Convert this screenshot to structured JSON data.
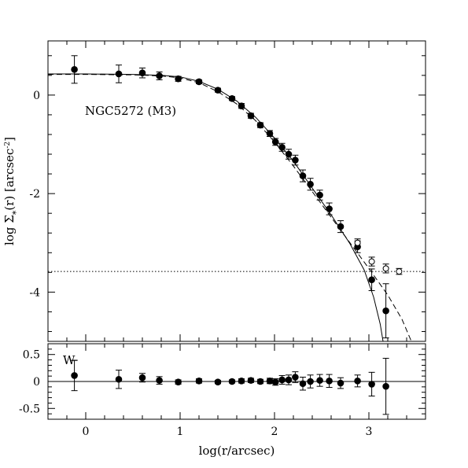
{
  "chart_data": [
    {
      "type": "scatter",
      "panel": "top",
      "annotation": "NGC5272 (M3)",
      "ylabel": "log Σ",
      "ylabel_sub": "*",
      "ylabel_tail": "(r) [arcsec",
      "ylabel_sup": "-2",
      "ylabel_close": "]",
      "xlim": [
        -0.4,
        3.6
      ],
      "ylim": [
        -5.0,
        1.1
      ],
      "y_ticks": [
        0,
        -2,
        -4
      ],
      "y_tick_labels": [
        "0",
        "-2",
        "-4"
      ],
      "x_ticks": [
        0,
        1,
        2,
        3
      ],
      "grid": false,
      "series": [
        {
          "marker": "filled-circle",
          "points": [
            {
              "x": -0.12,
              "y": 0.52,
              "err": 0.28
            },
            {
              "x": 0.35,
              "y": 0.43,
              "err": 0.18
            },
            {
              "x": 0.6,
              "y": 0.45,
              "err": 0.1
            },
            {
              "x": 0.78,
              "y": 0.39,
              "err": 0.08
            },
            {
              "x": 0.98,
              "y": 0.33,
              "err": 0.05
            },
            {
              "x": 1.2,
              "y": 0.27,
              "err": 0.04
            },
            {
              "x": 1.4,
              "y": 0.1,
              "err": 0.04
            },
            {
              "x": 1.55,
              "y": -0.07,
              "err": 0.04
            },
            {
              "x": 1.65,
              "y": -0.22,
              "err": 0.05
            },
            {
              "x": 1.75,
              "y": -0.42,
              "err": 0.05
            },
            {
              "x": 1.85,
              "y": -0.61,
              "err": 0.05
            },
            {
              "x": 1.95,
              "y": -0.78,
              "err": 0.06
            },
            {
              "x": 2.01,
              "y": -0.95,
              "err": 0.07
            },
            {
              "x": 2.08,
              "y": -1.06,
              "err": 0.08
            },
            {
              "x": 2.15,
              "y": -1.2,
              "err": 0.1
            },
            {
              "x": 2.22,
              "y": -1.32,
              "err": 0.1
            },
            {
              "x": 2.3,
              "y": -1.64,
              "err": 0.12
            },
            {
              "x": 2.38,
              "y": -1.81,
              "err": 0.12
            },
            {
              "x": 2.48,
              "y": -2.03,
              "err": 0.1
            },
            {
              "x": 2.58,
              "y": -2.31,
              "err": 0.12
            },
            {
              "x": 2.7,
              "y": -2.67,
              "err": 0.12
            },
            {
              "x": 2.88,
              "y": -3.08,
              "err": 0.12
            },
            {
              "x": 3.03,
              "y": -3.75,
              "err": 0.22
            },
            {
              "x": 3.18,
              "y": -4.38,
              "err": 0.55
            }
          ]
        },
        {
          "marker": "open-circle",
          "points": [
            {
              "x": 2.88,
              "y": -3.0,
              "err": 0.08
            },
            {
              "x": 3.03,
              "y": -3.38,
              "err": 0.09
            },
            {
              "x": 3.18,
              "y": -3.52,
              "err": 0.09
            },
            {
              "x": 3.32,
              "y": -3.58,
              "err": 0.06
            }
          ]
        }
      ],
      "models": [
        {
          "style": "solid",
          "points": [
            [
              -0.4,
              0.43
            ],
            [
              0.0,
              0.43
            ],
            [
              0.5,
              0.42
            ],
            [
              0.8,
              0.4
            ],
            [
              1.0,
              0.37
            ],
            [
              1.2,
              0.28
            ],
            [
              1.4,
              0.12
            ],
            [
              1.6,
              -0.12
            ],
            [
              1.8,
              -0.45
            ],
            [
              2.0,
              -0.87
            ],
            [
              2.2,
              -1.34
            ],
            [
              2.4,
              -1.89
            ],
            [
              2.6,
              -2.43
            ],
            [
              2.8,
              -3.02
            ],
            [
              2.95,
              -3.55
            ],
            [
              3.05,
              -4.1
            ],
            [
              3.12,
              -4.65
            ],
            [
              3.15,
              -5.0
            ]
          ]
        },
        {
          "style": "dashed",
          "points": [
            [
              -0.4,
              0.42
            ],
            [
              0.0,
              0.42
            ],
            [
              0.5,
              0.41
            ],
            [
              0.8,
              0.39
            ],
            [
              1.0,
              0.35
            ],
            [
              1.2,
              0.25
            ],
            [
              1.4,
              0.07
            ],
            [
              1.6,
              -0.18
            ],
            [
              1.8,
              -0.52
            ],
            [
              2.0,
              -0.95
            ],
            [
              2.2,
              -1.44
            ],
            [
              2.4,
              -1.96
            ],
            [
              2.6,
              -2.48
            ],
            [
              2.8,
              -3.0
            ],
            [
              3.0,
              -3.52
            ],
            [
              3.2,
              -4.06
            ],
            [
              3.35,
              -4.55
            ],
            [
              3.45,
              -5.0
            ]
          ]
        }
      ],
      "hline": {
        "y": -3.58,
        "style": "dotted"
      }
    },
    {
      "type": "scatter",
      "panel": "bottom",
      "annotation": "W",
      "xlabel": "log(r/arcsec)",
      "xlim": [
        -0.4,
        3.6
      ],
      "ylim": [
        -0.7,
        0.7
      ],
      "x_ticks": [
        0,
        1,
        2,
        3
      ],
      "x_tick_labels": [
        "0",
        "1",
        "2",
        "3"
      ],
      "y_ticks": [
        0.5,
        0,
        -0.5
      ],
      "y_tick_labels": [
        "0.5",
        "0",
        "-0.5"
      ],
      "grid": false,
      "zero_line": 0,
      "points": [
        {
          "x": -0.12,
          "y": 0.11,
          "err": 0.28
        },
        {
          "x": 0.35,
          "y": 0.04,
          "err": 0.17
        },
        {
          "x": 0.6,
          "y": 0.07,
          "err": 0.08
        },
        {
          "x": 0.78,
          "y": 0.02,
          "err": 0.07
        },
        {
          "x": 0.98,
          "y": -0.01,
          "err": 0.04
        },
        {
          "x": 1.2,
          "y": 0.01,
          "err": 0.04
        },
        {
          "x": 1.4,
          "y": -0.01,
          "err": 0.03
        },
        {
          "x": 1.55,
          "y": 0.0,
          "err": 0.03
        },
        {
          "x": 1.65,
          "y": 0.01,
          "err": 0.04
        },
        {
          "x": 1.75,
          "y": 0.02,
          "err": 0.04
        },
        {
          "x": 1.85,
          "y": 0.0,
          "err": 0.04
        },
        {
          "x": 1.95,
          "y": 0.01,
          "err": 0.05
        },
        {
          "x": 2.01,
          "y": -0.01,
          "err": 0.06
        },
        {
          "x": 2.08,
          "y": 0.03,
          "err": 0.08
        },
        {
          "x": 2.15,
          "y": 0.03,
          "err": 0.09
        },
        {
          "x": 2.22,
          "y": 0.08,
          "err": 0.1
        },
        {
          "x": 2.3,
          "y": -0.04,
          "err": 0.12
        },
        {
          "x": 2.38,
          "y": 0.0,
          "err": 0.12
        },
        {
          "x": 2.48,
          "y": 0.02,
          "err": 0.11
        },
        {
          "x": 2.58,
          "y": 0.01,
          "err": 0.12
        },
        {
          "x": 2.7,
          "y": -0.03,
          "err": 0.1
        },
        {
          "x": 2.88,
          "y": 0.01,
          "err": 0.11
        },
        {
          "x": 3.03,
          "y": -0.05,
          "err": 0.22
        },
        {
          "x": 3.18,
          "y": -0.09,
          "err": 0.52
        }
      ]
    }
  ]
}
